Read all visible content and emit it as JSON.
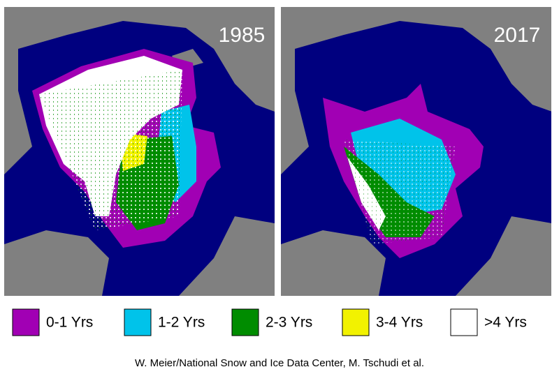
{
  "panels": [
    {
      "year": "1985"
    },
    {
      "year": "2017"
    }
  ],
  "legend": [
    {
      "label": "0-1 Yrs",
      "color": "#a100b4"
    },
    {
      "label": "1-2 Yrs",
      "color": "#00c3ea"
    },
    {
      "label": "2-3 Yrs",
      "color": "#008c00"
    },
    {
      "label": "3-4 Yrs",
      "color": "#f2f200"
    },
    {
      "label": ">4 Yrs",
      "color": "#ffffff"
    }
  ],
  "credit": "W. Meier/National Snow and Ice Data Center, M. Tschudi et al."
}
